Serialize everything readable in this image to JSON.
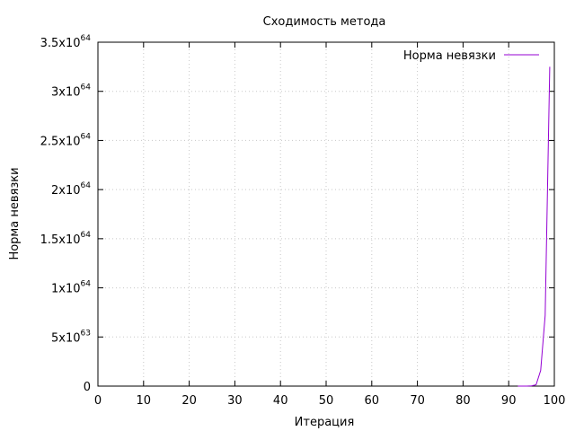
{
  "chart_data": {
    "type": "line",
    "title": "Сходимость метода",
    "xlabel": "Итерация",
    "ylabel": "Норма невязки",
    "xlim": [
      0,
      100
    ],
    "ylim": [
      0,
      3.5e+64
    ],
    "x_ticks": [
      0,
      10,
      20,
      30,
      40,
      50,
      60,
      70,
      80,
      90,
      100
    ],
    "x_tick_labels": [
      "0",
      "10",
      "20",
      "30",
      "40",
      "50",
      "60",
      "70",
      "80",
      "90",
      "100"
    ],
    "y_ticks": [
      {
        "value": 0,
        "mantissa": "0",
        "exponent": ""
      },
      {
        "value": 5e+63,
        "mantissa": "5x10",
        "exponent": "63"
      },
      {
        "value": 1e+64,
        "mantissa": "1x10",
        "exponent": "64"
      },
      {
        "value": 1.5e+64,
        "mantissa": "1.5x10",
        "exponent": "64"
      },
      {
        "value": 2e+64,
        "mantissa": "2x10",
        "exponent": "64"
      },
      {
        "value": 2.5e+64,
        "mantissa": "2.5x10",
        "exponent": "64"
      },
      {
        "value": 3e+64,
        "mantissa": "3x10",
        "exponent": "64"
      },
      {
        "value": 3.5e+64,
        "mantissa": "3.5x10",
        "exponent": "64"
      }
    ],
    "grid": true,
    "legend_position": "top-right",
    "series": [
      {
        "name": "Норма невязки",
        "color": "#9400d3",
        "x": [
          92,
          93,
          94,
          95,
          96,
          97,
          98,
          99
        ],
        "y": [
          0,
          5e+59,
          1.5e+60,
          3e+61,
          1.4e+62,
          1.6e+63,
          7.2e+63,
          3.25e+64
        ]
      }
    ]
  }
}
